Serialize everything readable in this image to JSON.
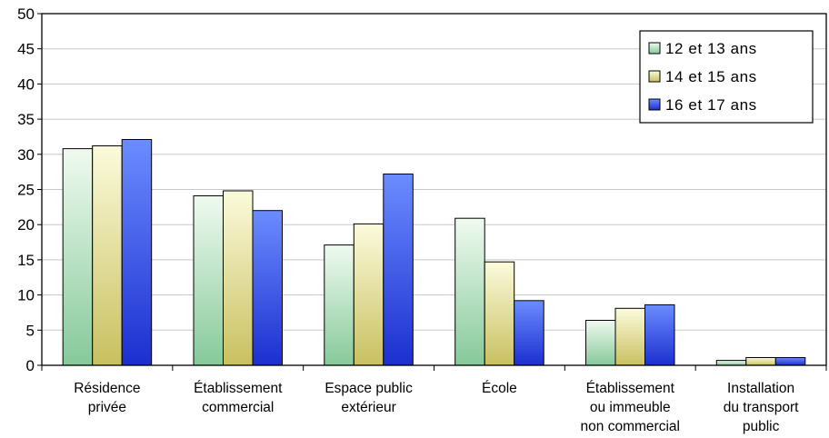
{
  "chart_data": {
    "type": "bar",
    "title": "",
    "xlabel": "",
    "ylabel": "",
    "ylim": [
      0,
      50
    ],
    "yticks": [
      0,
      5,
      10,
      15,
      20,
      25,
      30,
      35,
      40,
      45,
      50
    ],
    "grid": true,
    "legend_position": "top-right",
    "categories": [
      [
        "Résidence",
        "privée"
      ],
      [
        "Établissement",
        "commercial"
      ],
      [
        "Espace public",
        "extérieur"
      ],
      [
        "École"
      ],
      [
        "Établissement",
        "ou immeuble",
        "non commercial"
      ],
      [
        "Installation",
        "du transport",
        "public"
      ]
    ],
    "series": [
      {
        "name": "12 et 13 ans",
        "values": [
          30.8,
          24.1,
          17.1,
          20.9,
          6.4,
          0.7
        ],
        "color_top": "#f0faf0",
        "color_bottom": "#86c99a"
      },
      {
        "name": "14 et 15 ans",
        "values": [
          31.2,
          24.8,
          20.1,
          14.7,
          8.1,
          1.1
        ],
        "color_top": "#fbfbdc",
        "color_bottom": "#c9c060"
      },
      {
        "name": "16 et 17 ans",
        "values": [
          32.1,
          22.0,
          27.2,
          9.2,
          8.6,
          1.1
        ],
        "color_top": "#6b8cff",
        "color_bottom": "#1c2fcf"
      }
    ]
  }
}
